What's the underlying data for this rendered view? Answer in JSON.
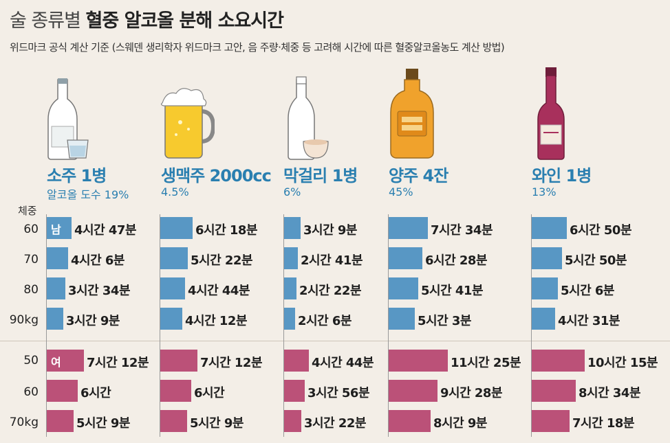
{
  "header": {
    "title_light": "술 종류별",
    "title_bold": "혈중 알코올 분해 소요시간",
    "subtitle": "위드마크 공식 계산 기준 (스웨덴 생리학자 위드마크 고안, 음 주량·체중 등 고려해 시간에 따른 혈중알코올농도 계산 방법)"
  },
  "icons": [
    "soju-bottle-icon",
    "beer-mug-icon",
    "makgeolli-bottle-icon",
    "whiskey-bottle-icon",
    "wine-bottle-icon"
  ],
  "colors": {
    "male": "#5897c4",
    "female": "#bb5178",
    "accent": "#2a7fb0",
    "background": "#f3eee7"
  },
  "chart_data": {
    "type": "bar",
    "title": "술 종류별 혈중 알코올 분해 소요시간",
    "unit": "minutes",
    "y_caption": "체중",
    "male_badge": "남",
    "female_badge": "여",
    "male_weights": [
      "60",
      "70",
      "80",
      "90kg"
    ],
    "female_weights": [
      "50",
      "60",
      "70kg"
    ],
    "drinks": [
      {
        "name": "소주 1병",
        "abv": "알코올 도수 19%",
        "male": [
          {
            "label": "4시간 47분",
            "value": 287
          },
          {
            "label": "4시간 6분",
            "value": 246
          },
          {
            "label": "3시간 34분",
            "value": 214
          },
          {
            "label": "3시간 9분",
            "value": 189
          }
        ],
        "female": [
          {
            "label": "7시간 12분",
            "value": 432
          },
          {
            "label": "6시간",
            "value": 360
          },
          {
            "label": "5시간 9분",
            "value": 309
          }
        ]
      },
      {
        "name": "생맥주 2000cc",
        "abv": "4.5%",
        "male": [
          {
            "label": "6시간 18분",
            "value": 378
          },
          {
            "label": "5시간 22분",
            "value": 322
          },
          {
            "label": "4시간 44분",
            "value": 284
          },
          {
            "label": "4시간 12분",
            "value": 252
          }
        ],
        "female": [
          {
            "label": "7시간 12분",
            "value": 432
          },
          {
            "label": "6시간",
            "value": 360
          },
          {
            "label": "5시간 9분",
            "value": 309
          }
        ]
      },
      {
        "name": "막걸리 1병",
        "abv": "6%",
        "male": [
          {
            "label": "3시간 9분",
            "value": 189
          },
          {
            "label": "2시간 41분",
            "value": 161
          },
          {
            "label": "2시간 22분",
            "value": 142
          },
          {
            "label": "2시간 6분",
            "value": 126
          }
        ],
        "female": [
          {
            "label": "4시간 44분",
            "value": 284
          },
          {
            "label": "3시간 56분",
            "value": 236
          },
          {
            "label": "3시간 22분",
            "value": 202
          }
        ]
      },
      {
        "name": "양주 4잔",
        "abv": "45%",
        "male": [
          {
            "label": "7시간 34분",
            "value": 454
          },
          {
            "label": "6시간 28분",
            "value": 388
          },
          {
            "label": "5시간 41분",
            "value": 341
          },
          {
            "label": "5시간 3분",
            "value": 303
          }
        ],
        "female": [
          {
            "label": "11시간 25분",
            "value": 685
          },
          {
            "label": "9시간 28분",
            "value": 568
          },
          {
            "label": "8시간 9분",
            "value": 489
          }
        ]
      },
      {
        "name": "와인 1병",
        "abv": "13%",
        "male": [
          {
            "label": "6시간 50분",
            "value": 410
          },
          {
            "label": "5시간 50분",
            "value": 350
          },
          {
            "label": "5시간 6분",
            "value": 306
          },
          {
            "label": "4시간 31분",
            "value": 271
          }
        ],
        "female": [
          {
            "label": "10시간 15분",
            "value": 615
          },
          {
            "label": "8시간 34분",
            "value": 514
          },
          {
            "label": "7시간 18분",
            "value": 438
          }
        ]
      }
    ]
  }
}
